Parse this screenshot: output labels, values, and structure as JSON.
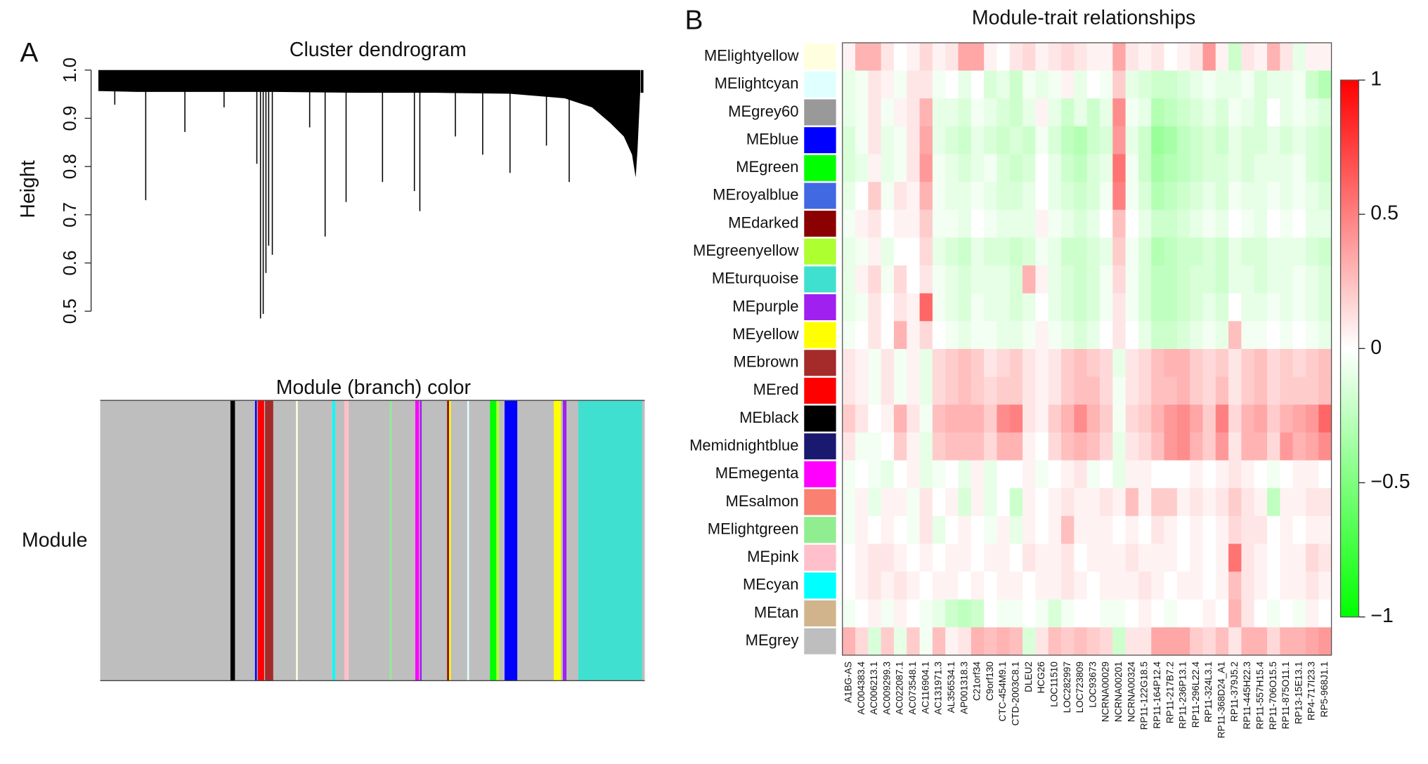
{
  "chart_data": [
    {
      "type": "dendrogram",
      "panel": "A",
      "title": "Cluster dendrogram",
      "ylabel": "Height",
      "ylim": [
        0.5,
        1.0
      ],
      "yticks": [
        0.5,
        0.6,
        0.7,
        0.8,
        0.9,
        {
          "value": 1.0,
          "label": "1.0"
        }
      ],
      "color_bar_title": "Module (branch) color",
      "color_bar_label": "Module"
    },
    {
      "type": "heatmap",
      "panel": "B",
      "title": "Module-trait relationships",
      "rows": [
        "MElightyellow",
        "MElightcyan",
        "MEgrey60",
        "MEblue",
        "MEgreen",
        "MEroyalblue",
        "MEdarked",
        "MEgreenyellow",
        "MEturquoise",
        "MEpurple",
        "MEyellow",
        "MEbrown",
        "MEred",
        "MEblack",
        "Memidnightblue",
        "MEmegenta",
        "MEsalmon",
        "MElightgreen",
        "MEpink",
        "MEcyan",
        "MEtan",
        "MEgrey"
      ],
      "row_colors": [
        "#ffffe0",
        "#e0ffff",
        "#999999",
        "#0000ff",
        "#00ff00",
        "#4169e1",
        "#8b0000",
        "#adff2f",
        "#40e0d0",
        "#a020f0",
        "#ffff00",
        "#a52a2a",
        "#ff0000",
        "#000000",
        "#191970",
        "#ff00ff",
        "#fa8072",
        "#90ee90",
        "#ffc0cb",
        "#00ffff",
        "#d2b48c",
        "#bebebe"
      ],
      "columns": [
        "A1BG-AS",
        "AC004383.4",
        "AC006213.1",
        "AC009299.3",
        "AC022087.1",
        "AC073548.1",
        "AC116904.1",
        "AC131971.3",
        "AL356534.1",
        "AP001318.3",
        "C21orf34",
        "C9orf130",
        "CTC-454M9.1",
        "CTD-2003C8.1",
        "DLEU2",
        "HCG26",
        "LOC11510",
        "LOC282997",
        "LOC723809",
        "LOC93673",
        "NCRNA00029",
        "NCRNA00201",
        "NCRNA00324",
        "RP11-122G18.5",
        "RP11-164P12.4",
        "RP11-217B7.2",
        "RP11-236P13.1",
        "RP11-296L22.4",
        "RP11-324L3.1",
        "RP11-368D24_A1",
        "RP11-379J5.2",
        "RP11-445H22.3",
        "RP11-557H15.4",
        "RP11-706O15.5",
        "RP11-875O11.1",
        "RP13-15E13.1",
        "RP4-717I23.3",
        "RP5-968J1.1"
      ],
      "values": [
        [
          0.05,
          0.3,
          0.3,
          0.1,
          0,
          0.05,
          0.15,
          0.05,
          0.1,
          0.35,
          0.35,
          0.05,
          0,
          0.1,
          0.15,
          0.05,
          0.1,
          0.15,
          0.1,
          0.05,
          0.05,
          0.35,
          0.1,
          0.05,
          0.1,
          0,
          0.05,
          0.1,
          0.4,
          0.05,
          -0.2,
          0.1,
          0.05,
          0.3,
          0.1,
          -0.1,
          0.05,
          0.05
        ],
        [
          -0.1,
          -0.05,
          0.1,
          0.05,
          -0.05,
          0.1,
          0.1,
          -0.05,
          0,
          -0.1,
          0,
          -0.15,
          -0.1,
          -0.2,
          -0.05,
          -0.1,
          -0.05,
          0.05,
          -0.1,
          0,
          -0.05,
          0.2,
          -0.1,
          -0.15,
          -0.2,
          -0.2,
          -0.15,
          -0.1,
          -0.05,
          -0.1,
          -0.1,
          -0.05,
          -0.15,
          -0.1,
          -0.1,
          -0.05,
          -0.2,
          -0.3
        ],
        [
          -0.1,
          -0.05,
          0.1,
          -0.05,
          0.05,
          0.1,
          0.3,
          -0.1,
          -0.1,
          -0.15,
          -0.05,
          -0.1,
          -0.15,
          -0.2,
          -0.1,
          0.05,
          -0.1,
          -0.2,
          -0.1,
          -0.2,
          -0.1,
          0.45,
          -0.05,
          -0.1,
          -0.3,
          -0.25,
          -0.2,
          -0.15,
          -0.1,
          -0.15,
          -0.05,
          -0.1,
          -0.15,
          0,
          -0.1,
          -0.05,
          -0.1,
          -0.15
        ],
        [
          -0.15,
          -0.05,
          0.1,
          -0.1,
          -0.05,
          0.1,
          0.35,
          -0.1,
          -0.15,
          -0.2,
          -0.1,
          -0.15,
          -0.2,
          -0.15,
          -0.2,
          -0.05,
          -0.15,
          -0.25,
          -0.3,
          -0.2,
          -0.15,
          0.4,
          -0.1,
          -0.2,
          -0.4,
          -0.35,
          -0.25,
          -0.2,
          -0.15,
          -0.2,
          -0.1,
          -0.15,
          -0.15,
          -0.1,
          -0.15,
          -0.1,
          -0.15,
          -0.2
        ],
        [
          -0.15,
          -0.1,
          0.05,
          -0.1,
          -0.05,
          0.1,
          0.4,
          -0.05,
          -0.1,
          -0.15,
          -0.1,
          -0.05,
          -0.15,
          -0.2,
          -0.15,
          0,
          -0.1,
          -0.2,
          -0.25,
          -0.15,
          -0.1,
          0.55,
          -0.05,
          -0.2,
          -0.35,
          -0.3,
          -0.25,
          -0.2,
          -0.15,
          -0.15,
          -0.1,
          -0.15,
          -0.1,
          -0.1,
          -0.1,
          -0.05,
          -0.15,
          -0.2
        ],
        [
          -0.1,
          0,
          0.2,
          -0.05,
          0.1,
          0.05,
          0.3,
          -0.05,
          -0.1,
          -0.1,
          -0.05,
          -0.1,
          -0.15,
          -0.15,
          -0.1,
          0,
          -0.1,
          -0.15,
          -0.2,
          -0.15,
          -0.05,
          0.5,
          -0.05,
          -0.15,
          -0.3,
          -0.25,
          -0.2,
          -0.15,
          -0.1,
          -0.15,
          -0.05,
          -0.1,
          -0.1,
          -0.05,
          -0.1,
          -0.05,
          -0.1,
          -0.15
        ],
        [
          -0.05,
          0.05,
          0.1,
          0,
          0.05,
          0.05,
          0.2,
          -0.05,
          -0.05,
          -0.1,
          0,
          -0.05,
          -0.1,
          -0.1,
          -0.1,
          0.05,
          -0.05,
          -0.1,
          -0.15,
          -0.1,
          0,
          0.25,
          0,
          -0.1,
          -0.2,
          -0.2,
          -0.15,
          -0.1,
          -0.05,
          -0.1,
          0,
          -0.05,
          -0.1,
          0,
          -0.05,
          0,
          -0.1,
          -0.1
        ],
        [
          -0.1,
          -0.05,
          0.05,
          -0.1,
          0,
          0,
          0.15,
          -0.1,
          -0.15,
          -0.2,
          -0.1,
          -0.15,
          -0.15,
          -0.2,
          -0.15,
          -0.05,
          -0.1,
          -0.2,
          -0.2,
          -0.15,
          -0.1,
          0.2,
          -0.05,
          -0.15,
          -0.3,
          -0.25,
          -0.2,
          -0.2,
          -0.15,
          -0.2,
          -0.1,
          -0.15,
          -0.15,
          -0.1,
          -0.1,
          -0.1,
          -0.15,
          -0.2
        ],
        [
          -0.1,
          0.05,
          0.15,
          -0.05,
          0.15,
          0,
          0.1,
          -0.05,
          -0.1,
          -0.15,
          -0.1,
          -0.1,
          -0.1,
          -0.15,
          0.3,
          0.05,
          -0.1,
          -0.15,
          -0.2,
          -0.15,
          -0.05,
          0.15,
          -0.05,
          -0.15,
          -0.25,
          -0.25,
          -0.2,
          -0.15,
          -0.15,
          -0.2,
          -0.1,
          -0.1,
          -0.15,
          -0.1,
          -0.1,
          -0.05,
          -0.1,
          -0.15
        ],
        [
          -0.1,
          -0.05,
          0.1,
          0,
          0.1,
          0.05,
          0.6,
          -0.05,
          -0.1,
          -0.15,
          -0.05,
          -0.1,
          -0.1,
          -0.15,
          -0.1,
          0,
          -0.1,
          -0.15,
          -0.2,
          -0.15,
          -0.05,
          0.1,
          -0.05,
          -0.15,
          -0.25,
          -0.25,
          -0.2,
          -0.15,
          -0.1,
          -0.15,
          0,
          -0.1,
          -0.1,
          -0.05,
          -0.1,
          -0.05,
          -0.1,
          -0.15
        ],
        [
          -0.05,
          0,
          0.1,
          0,
          0.3,
          0.05,
          0.15,
          0,
          -0.05,
          -0.1,
          -0.05,
          -0.05,
          -0.1,
          -0.1,
          -0.05,
          0.05,
          -0.05,
          -0.1,
          -0.15,
          -0.1,
          0,
          0.1,
          0,
          -0.1,
          -0.2,
          -0.2,
          -0.15,
          -0.1,
          -0.05,
          -0.1,
          0.25,
          -0.05,
          -0.05,
          0,
          -0.05,
          0,
          -0.05,
          -0.1
        ],
        [
          0.1,
          0.05,
          -0.05,
          0.1,
          -0.05,
          0.05,
          -0.1,
          0.15,
          0.2,
          0.25,
          0.2,
          0.1,
          0.15,
          0.2,
          0.1,
          0.05,
          0.1,
          0.2,
          0.25,
          0.2,
          0.15,
          -0.1,
          0.1,
          0.15,
          0.25,
          0.3,
          0.3,
          0.2,
          0.15,
          0.2,
          0.1,
          0.2,
          0.25,
          0.15,
          0.2,
          0.15,
          0.2,
          0.25
        ],
        [
          0.1,
          0.05,
          -0.05,
          0.1,
          -0.05,
          0.05,
          -0.1,
          0.15,
          0.2,
          0.25,
          0.2,
          0.15,
          0.2,
          0.2,
          0.1,
          0.05,
          0.1,
          0.2,
          0.25,
          0.25,
          0.15,
          -0.05,
          0.1,
          0.15,
          0.25,
          0.25,
          0.3,
          0.2,
          0.15,
          0.25,
          0.1,
          0.2,
          0.25,
          0.15,
          0.2,
          0.2,
          0.2,
          0.25
        ],
        [
          0.2,
          0.1,
          0,
          0.05,
          0.3,
          0.1,
          -0.05,
          0.25,
          0.3,
          0.3,
          0.3,
          0.2,
          0.45,
          0.5,
          0.1,
          0.05,
          0.2,
          0.3,
          0.45,
          0.3,
          0.2,
          -0.05,
          0.15,
          0.2,
          0.3,
          0.4,
          0.45,
          0.35,
          0.2,
          0.5,
          0.15,
          0.3,
          0.35,
          0.2,
          0.3,
          0.35,
          0.4,
          0.6
        ],
        [
          0.1,
          -0.05,
          -0.05,
          0,
          0.2,
          0.05,
          -0.1,
          0.2,
          0.25,
          0.25,
          0.25,
          0.15,
          0.3,
          0.3,
          0.05,
          0,
          0.15,
          0.25,
          0.3,
          0.25,
          0.15,
          -0.1,
          0.1,
          0.15,
          0.25,
          0.4,
          0.45,
          0.3,
          0.2,
          0.4,
          0.1,
          0.3,
          0.3,
          0.15,
          0.4,
          0.3,
          0.35,
          0.45
        ],
        [
          -0.05,
          0,
          -0.05,
          -0.1,
          0,
          0.05,
          -0.1,
          -0.05,
          0,
          -0.1,
          0.05,
          -0.1,
          0,
          0,
          0.05,
          -0.05,
          0,
          0.05,
          0.1,
          -0.05,
          0,
          -0.1,
          0.05,
          0.05,
          0,
          0,
          0,
          0.05,
          0,
          0.05,
          0.1,
          0.05,
          0,
          -0.05,
          0,
          0.05,
          0.05,
          0
        ],
        [
          -0.05,
          0.05,
          -0.1,
          0.05,
          0.05,
          -0.05,
          0.1,
          0,
          0.05,
          -0.15,
          0.05,
          -0.1,
          0,
          -0.2,
          0.05,
          0,
          0.05,
          0.1,
          0.05,
          0.05,
          0.1,
          0.05,
          0.25,
          0.05,
          0.2,
          0.2,
          0.05,
          0.1,
          0.05,
          0.1,
          0.2,
          0.1,
          0.05,
          -0.25,
          0.05,
          0.05,
          0.1,
          0.1
        ],
        [
          -0.05,
          0.05,
          0,
          0.05,
          0,
          -0.05,
          0.1,
          -0.1,
          0,
          0.05,
          0,
          -0.05,
          0.05,
          -0.1,
          0.05,
          0,
          0.05,
          0.25,
          0.05,
          0.05,
          0.05,
          0,
          0.05,
          0,
          0.1,
          0.05,
          0,
          0.05,
          0,
          0.05,
          0.15,
          0.1,
          0.1,
          0,
          0.05,
          0,
          0.05,
          0.05
        ],
        [
          0,
          0.05,
          0.1,
          0.1,
          0.05,
          0,
          0.05,
          0,
          0.05,
          0.05,
          0,
          0.05,
          0.05,
          0,
          0.1,
          0.05,
          0.05,
          0.1,
          0,
          0.05,
          0.05,
          0.05,
          0.1,
          0.05,
          0.05,
          0.05,
          0,
          0.05,
          0,
          0.05,
          0.55,
          0.1,
          0.05,
          0,
          0.05,
          0.05,
          0.15,
          0.1
        ],
        [
          0,
          0.05,
          0.1,
          0.05,
          0.1,
          0.05,
          0,
          0.05,
          0.05,
          0,
          0.05,
          0,
          0.05,
          0.05,
          0,
          0.05,
          0.05,
          0.1,
          0.05,
          0,
          0.05,
          0.05,
          0.05,
          0.1,
          0.05,
          0,
          0.05,
          0.05,
          0,
          0.05,
          0.25,
          0.1,
          0.05,
          0,
          0.05,
          0.05,
          0.1,
          0.05
        ],
        [
          -0.05,
          0,
          0.05,
          -0.05,
          0.05,
          0,
          -0.05,
          -0.1,
          -0.2,
          -0.25,
          -0.2,
          0,
          -0.05,
          -0.05,
          0,
          -0.05,
          -0.15,
          -0.05,
          0,
          0,
          -0.05,
          -0.05,
          0,
          0.05,
          0,
          -0.05,
          0,
          0,
          0.05,
          0,
          0.3,
          0.1,
          0,
          -0.05,
          0,
          -0.05,
          0.05,
          0
        ],
        [
          0.3,
          0.15,
          -0.15,
          0.2,
          -0.1,
          0.2,
          -0.05,
          0.25,
          0.05,
          0.1,
          0.3,
          0.25,
          0.3,
          0.25,
          -0.15,
          0.1,
          0.25,
          0.2,
          0.25,
          0.2,
          0.15,
          -0.2,
          0.1,
          0.1,
          0.35,
          0.35,
          0.35,
          0.2,
          0.15,
          0.25,
          0.1,
          0.3,
          0.3,
          0.15,
          0.3,
          0.3,
          0.35,
          0.4
        ]
      ],
      "colorbar": {
        "lim": [
          -1,
          1
        ],
        "ticks": [
          {
            "value": -1,
            "label": "−1"
          },
          {
            "value": -0.5,
            "label": "−0.5"
          },
          0,
          0.5,
          1
        ],
        "colors": [
          "#00ff00",
          "#ffffff",
          "#ff0000"
        ]
      }
    }
  ]
}
